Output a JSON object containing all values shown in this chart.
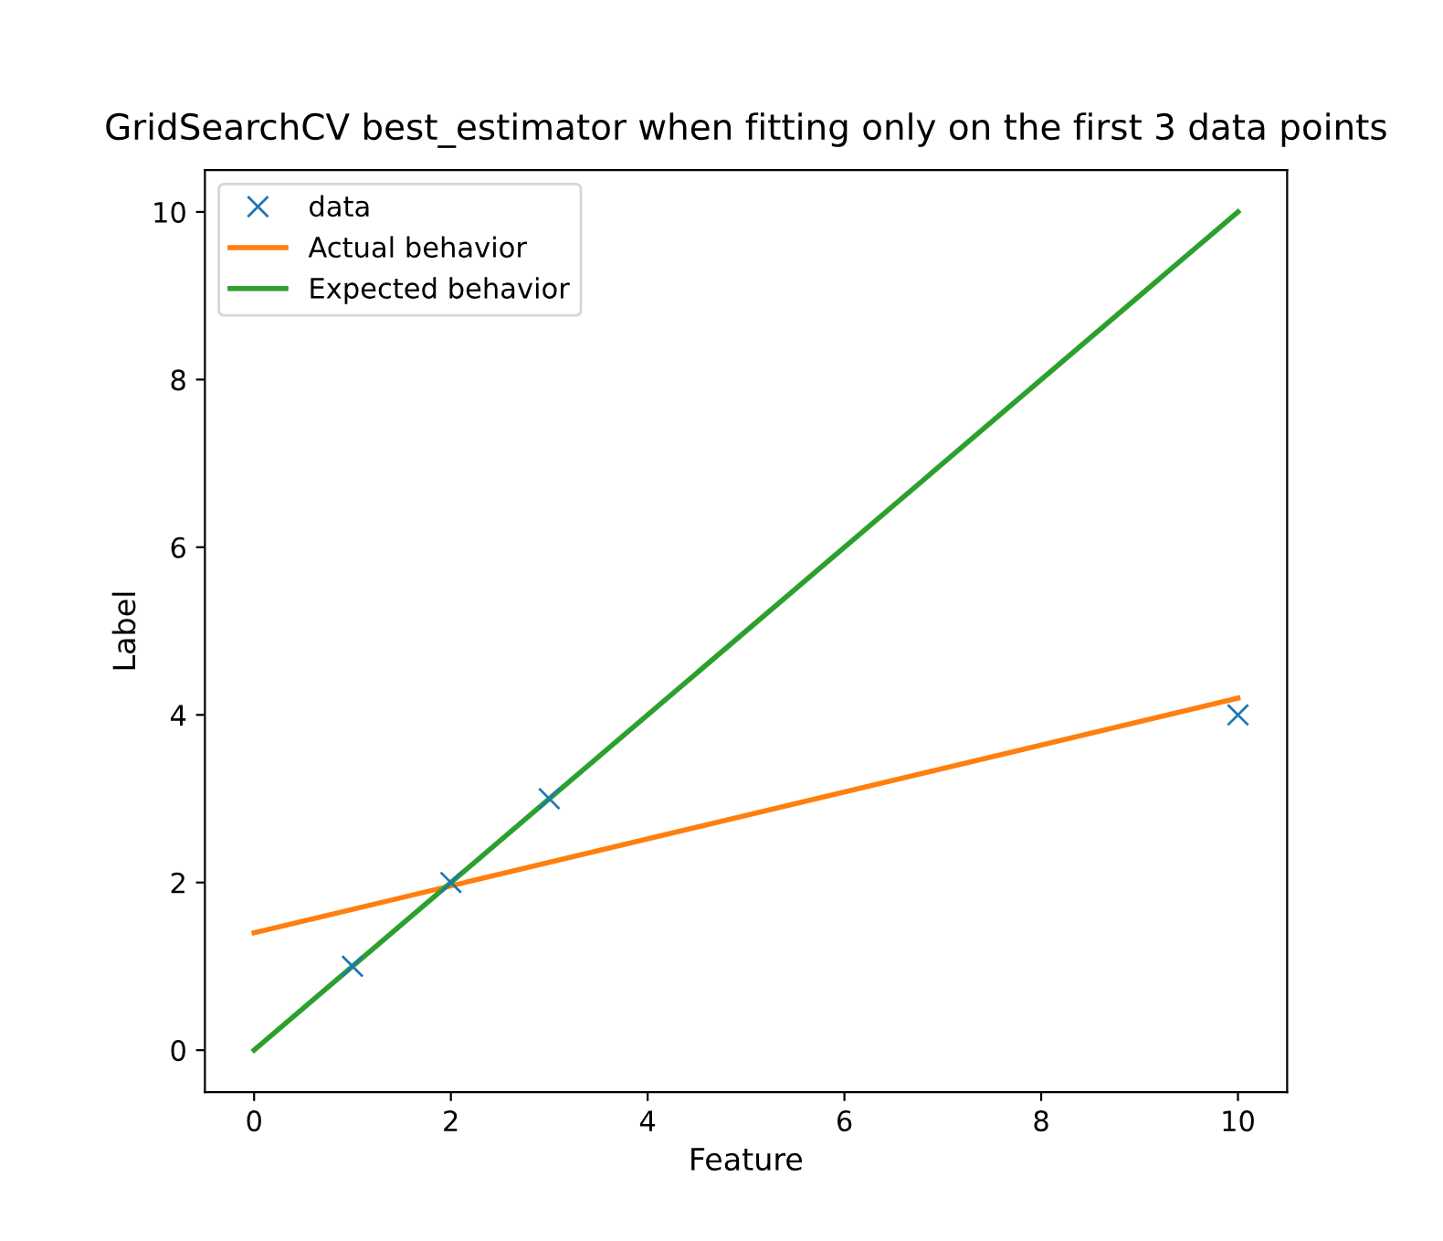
{
  "chart_data": {
    "type": "scatter",
    "title": "GridSearchCV best_estimator when fitting only on the first 3 data points",
    "xlabel": "Feature",
    "ylabel": "Label",
    "series": [
      {
        "name": "data",
        "color": "#1f77b4",
        "marker": "cross",
        "x": [
          1,
          2,
          3,
          10
        ],
        "values": [
          1,
          2,
          3,
          4
        ]
      },
      {
        "name": "Actual behavior",
        "type": "line",
        "color": "#ff7f0e",
        "x": [
          0,
          10
        ],
        "values": [
          1.4,
          4.2
        ]
      },
      {
        "name": "Expected behavior",
        "type": "line",
        "color": "#2ca02c",
        "x": [
          0,
          10
        ],
        "values": [
          0,
          10
        ]
      }
    ],
    "xlim": [
      -0.5,
      10.5
    ],
    "ylim": [
      -0.5,
      10.5
    ],
    "xticks": [
      0,
      2,
      4,
      6,
      8,
      10
    ],
    "yticks": [
      0,
      2,
      4,
      6,
      8,
      10
    ],
    "legend": "top left",
    "grid": false
  }
}
